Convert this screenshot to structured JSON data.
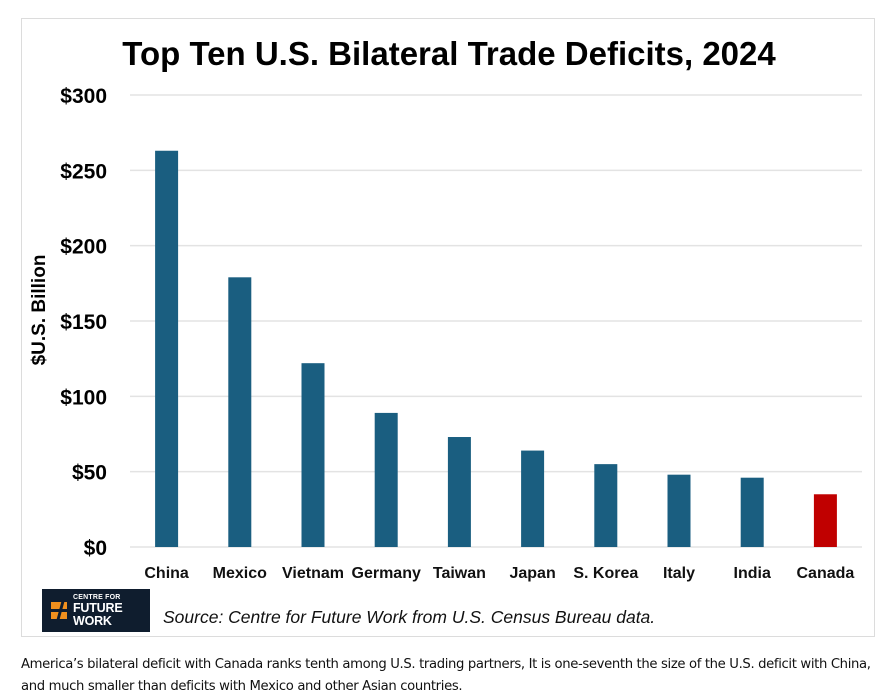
{
  "chart_data": {
    "type": "bar",
    "title": "Top Ten U.S. Bilateral Trade Deficits, 2024",
    "xlabel": "",
    "ylabel": "$U.S. Billion",
    "ylim": [
      0,
      300
    ],
    "yticks": [
      0,
      50,
      100,
      150,
      200,
      250,
      300
    ],
    "ytick_labels": [
      "$0",
      "$50",
      "$100",
      "$150",
      "$200",
      "$250",
      "$300"
    ],
    "grid": true,
    "categories": [
      "China",
      "Mexico",
      "Vietnam",
      "Germany",
      "Taiwan",
      "Japan",
      "S. Korea",
      "Italy",
      "India",
      "Canada"
    ],
    "values": [
      263,
      179,
      122,
      89,
      73,
      64,
      55,
      48,
      46,
      35
    ],
    "colors": {
      "default": "#1a5e80",
      "highlight": "#c00000",
      "highlight_category": "Canada",
      "grid": "#e3e3e3"
    }
  },
  "source": "Source: Centre for Future Work from U.S. Census Bureau data.",
  "logo": {
    "line1": "CENTRE FOR",
    "line2": "FUTURE WORK"
  },
  "caption": "America’s bilateral deficit with Canada ranks tenth among U.S. trading partners, It is one-seventh the size of the U.S. deficit with China, and much smaller than deficits with Mexico and other Asian countries."
}
